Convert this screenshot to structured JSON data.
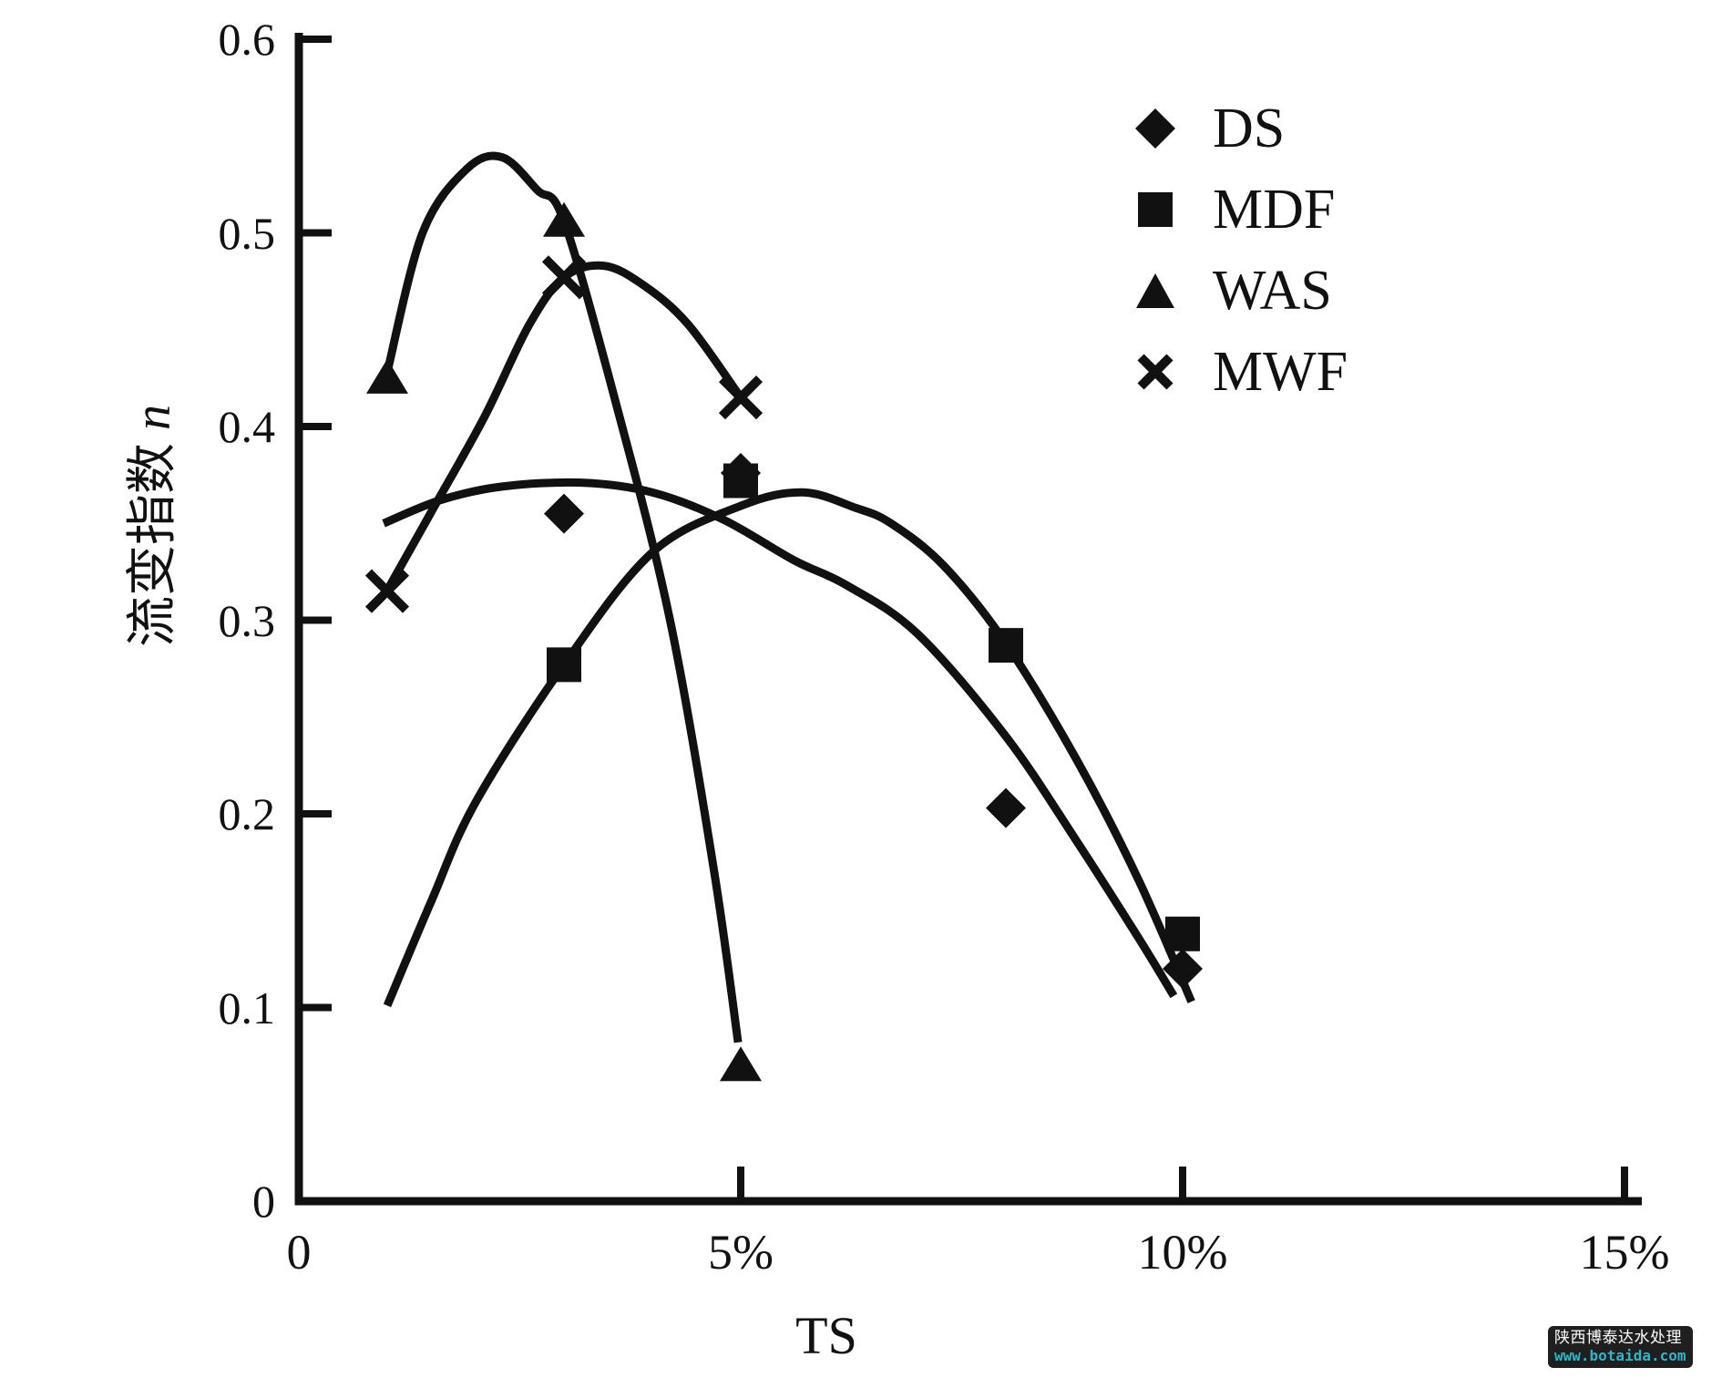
{
  "axes": {
    "y": {
      "title_cjk": "流变指数",
      "title_var": "n"
    },
    "x": {
      "title": "TS"
    }
  },
  "legend": {
    "items": [
      {
        "label": "DS",
        "marker": "diamond"
      },
      {
        "label": "MDF",
        "marker": "square"
      },
      {
        "label": "WAS",
        "marker": "triangle"
      },
      {
        "label": "MWF",
        "marker": "x"
      }
    ]
  },
  "watermark": {
    "line1": "陕西博泰达水处理",
    "line2": "www.botaida.com",
    "bg_color": "#1f1f1f",
    "text_color": "#ffffff",
    "link_color": "#2ab7c8"
  },
  "chart_data": {
    "type": "scatter",
    "title": "",
    "xlabel": "TS",
    "ylabel": "流变指数 n",
    "xlim": [
      0,
      15
    ],
    "ylim": [
      0,
      0.6
    ],
    "x_unit": "percent",
    "grid": false,
    "legend_position": "upper-right-inside",
    "x_ticks": {
      "values": [
        0,
        5,
        10,
        15
      ],
      "labels": [
        "0",
        "5%",
        "10%",
        "15%"
      ]
    },
    "y_ticks": {
      "values": [
        0,
        0.1,
        0.2,
        0.3,
        0.4,
        0.5,
        0.6
      ],
      "labels": [
        "0",
        "0.1",
        "0.2",
        "0.3",
        "0.4",
        "0.5",
        "0.6"
      ]
    },
    "marker_color": "#111111",
    "line_color": "#111111",
    "series": [
      {
        "name": "DS",
        "marker": "diamond",
        "points": [
          [
            3,
            0.355
          ],
          [
            5,
            0.376
          ],
          [
            8,
            0.203
          ],
          [
            10,
            0.12
          ]
        ],
        "fit_curve": [
          [
            0.96,
            0.35
          ],
          [
            1.6,
            0.362
          ],
          [
            2.3,
            0.369
          ],
          [
            3.2,
            0.371
          ],
          [
            4.0,
            0.366
          ],
          [
            4.8,
            0.352
          ],
          [
            5.6,
            0.331
          ],
          [
            6.2,
            0.318
          ],
          [
            7.0,
            0.293
          ],
          [
            8.0,
            0.24
          ],
          [
            8.8,
            0.186
          ],
          [
            9.5,
            0.136
          ],
          [
            9.9,
            0.106
          ]
        ]
      },
      {
        "name": "MDF",
        "marker": "square",
        "points": [
          [
            3,
            0.277
          ],
          [
            5,
            0.372
          ],
          [
            8,
            0.287
          ],
          [
            10,
            0.138
          ]
        ],
        "fit_curve": [
          [
            1.0,
            0.101
          ],
          [
            1.5,
            0.155
          ],
          [
            2.0,
            0.206
          ],
          [
            3.0,
            0.277
          ],
          [
            4.0,
            0.335
          ],
          [
            5.0,
            0.359
          ],
          [
            5.7,
            0.366
          ],
          [
            6.3,
            0.358
          ],
          [
            6.7,
            0.35
          ],
          [
            7.3,
            0.328
          ],
          [
            8.0,
            0.288
          ],
          [
            8.8,
            0.228
          ],
          [
            9.5,
            0.166
          ],
          [
            10.1,
            0.103
          ]
        ]
      },
      {
        "name": "WAS",
        "marker": "triangle",
        "points": [
          [
            1,
            0.425
          ],
          [
            3,
            0.506
          ],
          [
            5,
            0.07
          ]
        ],
        "fit_curve": [
          [
            1.0,
            0.428
          ],
          [
            1.4,
            0.5
          ],
          [
            1.9,
            0.533
          ],
          [
            2.3,
            0.539
          ],
          [
            2.7,
            0.522
          ],
          [
            3.0,
            0.506
          ],
          [
            3.6,
            0.41
          ],
          [
            4.2,
            0.3
          ],
          [
            4.7,
            0.17
          ],
          [
            4.97,
            0.082
          ]
        ]
      },
      {
        "name": "MWF",
        "marker": "x",
        "points": [
          [
            1,
            0.315
          ],
          [
            3,
            0.477
          ],
          [
            5,
            0.415
          ]
        ],
        "fit_curve": [
          [
            1.02,
            0.317
          ],
          [
            1.5,
            0.356
          ],
          [
            2.1,
            0.405
          ],
          [
            2.6,
            0.452
          ],
          [
            3.0,
            0.477
          ],
          [
            3.45,
            0.483
          ],
          [
            3.9,
            0.473
          ],
          [
            4.4,
            0.453
          ],
          [
            4.97,
            0.417
          ]
        ]
      }
    ]
  }
}
